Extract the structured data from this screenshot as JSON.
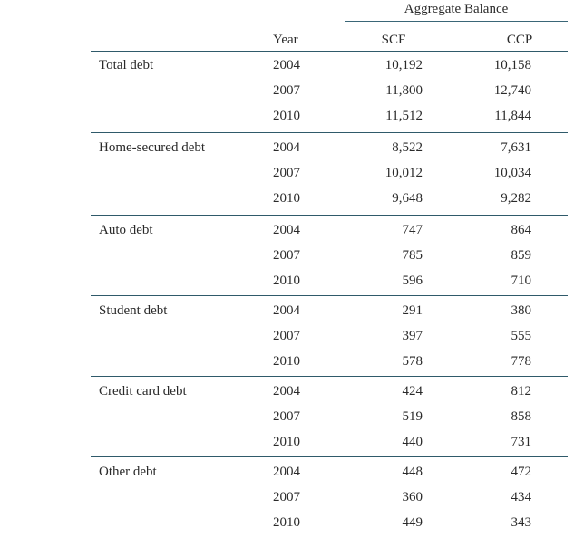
{
  "header": {
    "group_label": "Aggregate Balance",
    "year_col": "Year",
    "scf_col": "SCF",
    "ccp_col": "CCP"
  },
  "groups": [
    {
      "label": "Total debt",
      "rows": [
        {
          "year": "2004",
          "scf": "10,192",
          "ccp": "10,158"
        },
        {
          "year": "2007",
          "scf": "11,800",
          "ccp": "12,740"
        },
        {
          "year": "2010",
          "scf": "11,512",
          "ccp": "11,844"
        }
      ]
    },
    {
      "label": "Home-secured debt",
      "rows": [
        {
          "year": "2004",
          "scf": "8,522",
          "ccp": "7,631"
        },
        {
          "year": "2007",
          "scf": "10,012",
          "ccp": "10,034"
        },
        {
          "year": "2010",
          "scf": "9,648",
          "ccp": "9,282"
        }
      ]
    },
    {
      "label": "Auto debt",
      "rows": [
        {
          "year": "2004",
          "scf": "747",
          "ccp": "864"
        },
        {
          "year": "2007",
          "scf": "785",
          "ccp": "859"
        },
        {
          "year": "2010",
          "scf": "596",
          "ccp": "710"
        }
      ]
    },
    {
      "label": "Student debt",
      "rows": [
        {
          "year": "2004",
          "scf": "291",
          "ccp": "380"
        },
        {
          "year": "2007",
          "scf": "397",
          "ccp": "555"
        },
        {
          "year": "2010",
          "scf": "578",
          "ccp": "778"
        }
      ]
    },
    {
      "label": "Credit card debt",
      "rows": [
        {
          "year": "2004",
          "scf": "424",
          "ccp": "812"
        },
        {
          "year": "2007",
          "scf": "519",
          "ccp": "858"
        },
        {
          "year": "2010",
          "scf": "440",
          "ccp": "731"
        }
      ]
    },
    {
      "label": "Other debt",
      "rows": [
        {
          "year": "2004",
          "scf": "448",
          "ccp": "472"
        },
        {
          "year": "2007",
          "scf": "360",
          "ccp": "434"
        },
        {
          "year": "2010",
          "scf": "449",
          "ccp": "343"
        }
      ]
    }
  ]
}
